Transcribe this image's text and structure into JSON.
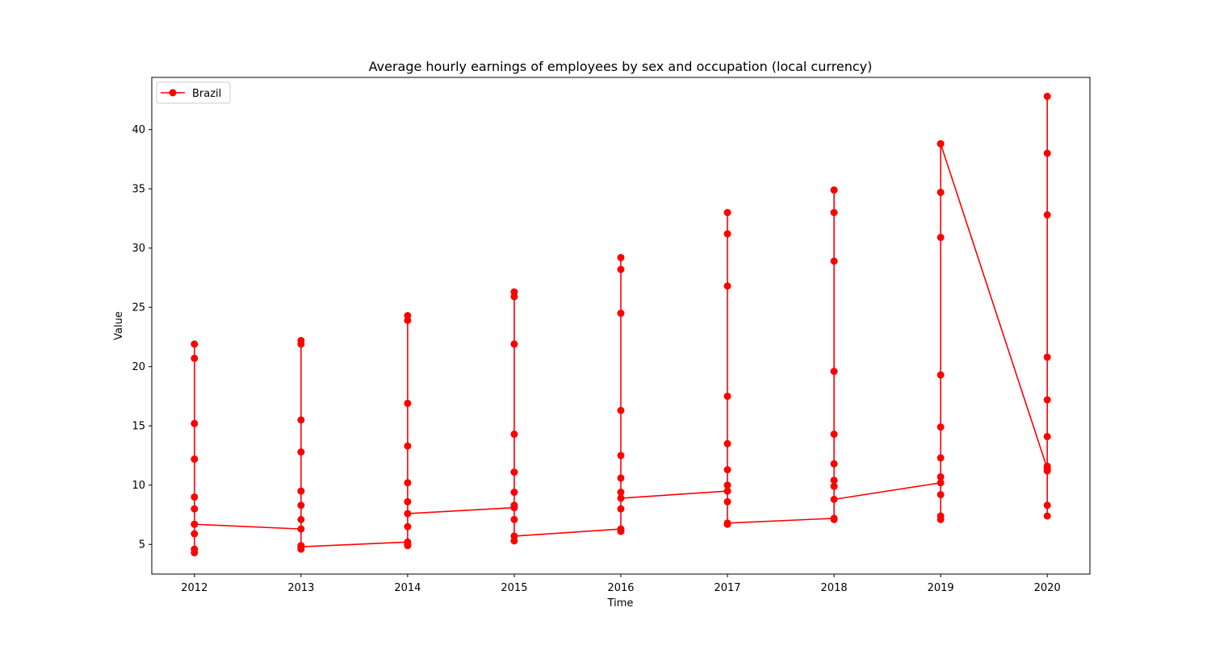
{
  "chart_data": {
    "type": "line",
    "title": "Average hourly earnings of employees by sex and occupation (local currency)",
    "xlabel": "Time",
    "ylabel": "Value",
    "xlim": [
      2011.6,
      2020.4
    ],
    "ylim": [
      2.5,
      44.4
    ],
    "xticks": [
      "2012",
      "2013",
      "2014",
      "2015",
      "2016",
      "2017",
      "2018",
      "2019",
      "2020"
    ],
    "yticks": [
      "5",
      "10",
      "15",
      "20",
      "25",
      "30",
      "35",
      "40"
    ],
    "grid": false,
    "legend_position": "top-left",
    "color": "#ff0000",
    "series": [
      {
        "name": "Brazil",
        "points": [
          [
            2012,
            21.9
          ],
          [
            2012,
            20.7
          ],
          [
            2012,
            15.2
          ],
          [
            2012,
            12.2
          ],
          [
            2012,
            9.0
          ],
          [
            2012,
            8.0
          ],
          [
            2012,
            6.7
          ],
          [
            2012,
            5.9
          ],
          [
            2012,
            4.6
          ],
          [
            2012,
            4.3
          ],
          [
            2012,
            6.7
          ],
          [
            2013,
            6.3
          ],
          [
            2013,
            22.2
          ],
          [
            2013,
            21.9
          ],
          [
            2013,
            15.5
          ],
          [
            2013,
            12.8
          ],
          [
            2013,
            9.5
          ],
          [
            2013,
            8.3
          ],
          [
            2013,
            7.1
          ],
          [
            2013,
            4.9
          ],
          [
            2013,
            4.6
          ],
          [
            2013,
            4.8
          ],
          [
            2014,
            5.2
          ],
          [
            2014,
            24.3
          ],
          [
            2014,
            23.9
          ],
          [
            2014,
            16.9
          ],
          [
            2014,
            13.3
          ],
          [
            2014,
            10.2
          ],
          [
            2014,
            8.6
          ],
          [
            2014,
            6.5
          ],
          [
            2014,
            5.0
          ],
          [
            2014,
            4.9
          ],
          [
            2014,
            7.6
          ],
          [
            2015,
            8.1
          ],
          [
            2015,
            26.3
          ],
          [
            2015,
            25.9
          ],
          [
            2015,
            21.9
          ],
          [
            2015,
            14.3
          ],
          [
            2015,
            11.1
          ],
          [
            2015,
            9.4
          ],
          [
            2015,
            8.3
          ],
          [
            2015,
            7.1
          ],
          [
            2015,
            5.3
          ],
          [
            2015,
            5.7
          ],
          [
            2016,
            6.3
          ],
          [
            2016,
            29.2
          ],
          [
            2016,
            28.2
          ],
          [
            2016,
            24.5
          ],
          [
            2016,
            16.3
          ],
          [
            2016,
            12.5
          ],
          [
            2016,
            10.6
          ],
          [
            2016,
            9.4
          ],
          [
            2016,
            8.0
          ],
          [
            2016,
            6.1
          ],
          [
            2016,
            8.9
          ],
          [
            2017,
            9.5
          ],
          [
            2017,
            33.0
          ],
          [
            2017,
            31.2
          ],
          [
            2017,
            26.8
          ],
          [
            2017,
            17.5
          ],
          [
            2017,
            13.5
          ],
          [
            2017,
            11.3
          ],
          [
            2017,
            10.0
          ],
          [
            2017,
            8.6
          ],
          [
            2017,
            6.7
          ],
          [
            2017,
            6.8
          ],
          [
            2018,
            7.2
          ],
          [
            2018,
            34.9
          ],
          [
            2018,
            33.0
          ],
          [
            2018,
            28.9
          ],
          [
            2018,
            19.6
          ],
          [
            2018,
            14.3
          ],
          [
            2018,
            11.8
          ],
          [
            2018,
            10.4
          ],
          [
            2018,
            9.9
          ],
          [
            2018,
            7.1
          ],
          [
            2018,
            8.8
          ],
          [
            2019,
            10.2
          ],
          [
            2019,
            38.8
          ],
          [
            2019,
            34.7
          ],
          [
            2019,
            30.9
          ],
          [
            2019,
            19.3
          ],
          [
            2019,
            14.9
          ],
          [
            2019,
            12.3
          ],
          [
            2019,
            10.7
          ],
          [
            2019,
            9.2
          ],
          [
            2019,
            7.4
          ],
          [
            2019,
            7.1
          ],
          [
            2019,
            38.8
          ],
          [
            2020,
            11.4
          ],
          [
            2020,
            42.8
          ],
          [
            2020,
            38.0
          ],
          [
            2020,
            32.8
          ],
          [
            2020,
            20.8
          ],
          [
            2020,
            17.2
          ],
          [
            2020,
            14.1
          ],
          [
            2020,
            11.6
          ],
          [
            2020,
            11.2
          ],
          [
            2020,
            8.3
          ],
          [
            2020,
            7.4
          ]
        ]
      }
    ]
  }
}
